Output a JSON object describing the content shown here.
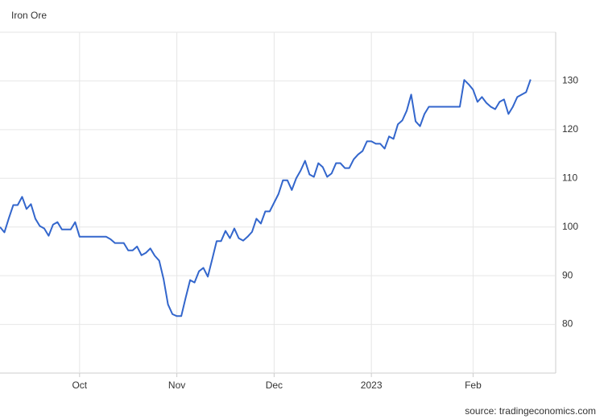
{
  "chart_data": {
    "type": "line",
    "title": "Iron Ore",
    "source": "source: tradingeconomics.com",
    "categories": [
      null,
      null,
      null,
      null,
      null,
      null,
      null,
      null,
      null,
      null,
      null,
      null,
      null,
      null,
      null,
      null,
      null,
      null,
      "Oct",
      null,
      null,
      null,
      null,
      null,
      null,
      null,
      null,
      null,
      null,
      null,
      null,
      null,
      null,
      null,
      null,
      null,
      null,
      null,
      null,
      null,
      "Nov",
      null,
      null,
      null,
      null,
      null,
      null,
      null,
      null,
      null,
      null,
      null,
      null,
      null,
      null,
      null,
      null,
      null,
      null,
      null,
      null,
      null,
      "Dec",
      null,
      null,
      null,
      null,
      null,
      null,
      null,
      null,
      null,
      null,
      null,
      null,
      null,
      null,
      null,
      null,
      null,
      null,
      null,
      null,
      null,
      "2023",
      null,
      null,
      null,
      null,
      null,
      null,
      null,
      null,
      null,
      null,
      null,
      null,
      null,
      null,
      null,
      null,
      null,
      null,
      null,
      null,
      null,
      null,
      "Feb",
      null,
      null,
      null,
      null,
      null,
      null,
      null,
      null,
      null,
      null,
      null,
      null,
      null
    ],
    "values": [
      100.0,
      98.9,
      101.8,
      104.5,
      104.5,
      106.2,
      103.7,
      104.7,
      101.7,
      100.2,
      99.7,
      98.2,
      100.5,
      101,
      99.5,
      99.5,
      99.5,
      101,
      98,
      98,
      98,
      98,
      98,
      98,
      98,
      97.5,
      96.7,
      96.7,
      96.7,
      95.2,
      95.2,
      96,
      94.2,
      94.7,
      95.6,
      94.1,
      93.1,
      89.3,
      84.1,
      82.1,
      81.7,
      81.7,
      85.5,
      89.1,
      88.6,
      90.9,
      91.6,
      89.8,
      93.4,
      97.1,
      97.1,
      99.2,
      97.7,
      99.7,
      97.7,
      97.2,
      98,
      99,
      101.7,
      100.7,
      103.2,
      103.2,
      105,
      106.8,
      109.6,
      109.6,
      107.6,
      110,
      111.6,
      113.6,
      110.8,
      110.3,
      113.1,
      112.3,
      110.3,
      111,
      113.1,
      113.1,
      112.1,
      112.1,
      113.9,
      114.9,
      115.6,
      117.6,
      117.6,
      117.1,
      117.1,
      116.1,
      118.6,
      118.1,
      121.1,
      121.9,
      123.9,
      127.2,
      121.7,
      120.7,
      123.2,
      124.7,
      124.7,
      124.7,
      124.7,
      124.7,
      124.7,
      124.7,
      124.7,
      130.2,
      129.3,
      128.2,
      125.7,
      126.7,
      125.5,
      124.7,
      124.2,
      125.7,
      126.2,
      123.2,
      124.7,
      126.7,
      127.2,
      127.7,
      130.3
    ],
    "color": "#3366cc",
    "ylim": [
      70,
      140
    ],
    "yticks": [
      80,
      90,
      100,
      110,
      120,
      130
    ],
    "grid": true
  }
}
